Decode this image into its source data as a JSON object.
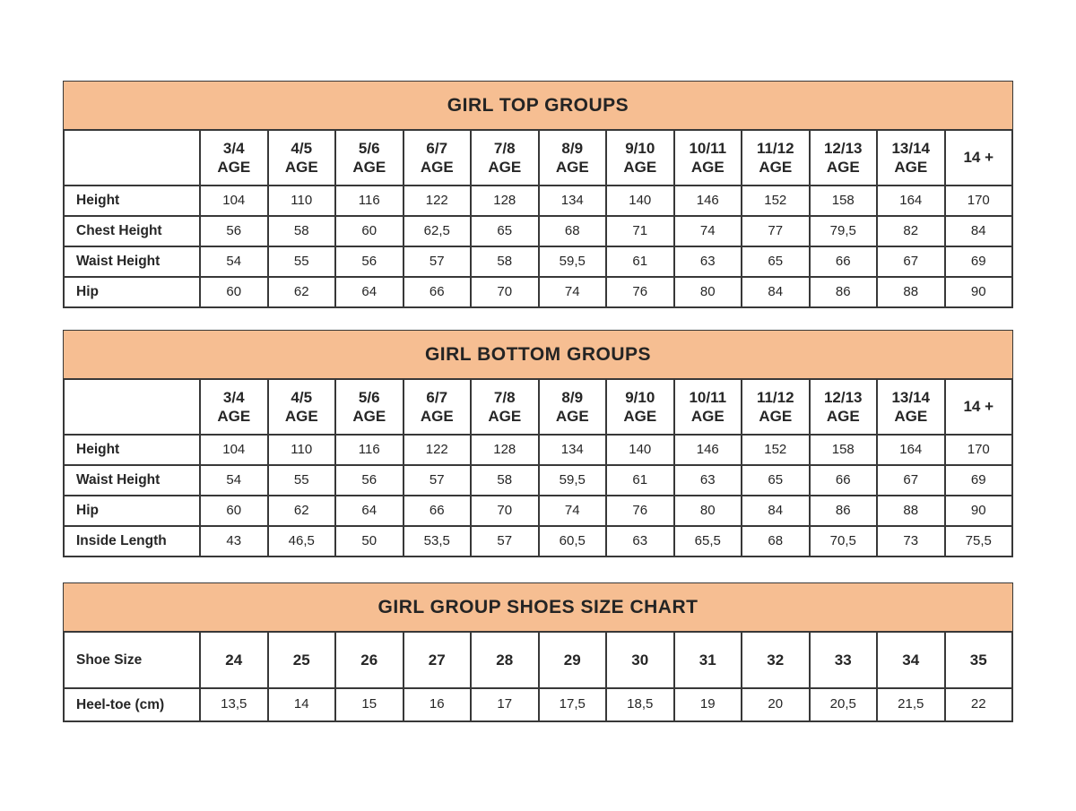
{
  "colors": {
    "band_bg": "#F6BE92",
    "border": "#383838",
    "text": "#262626",
    "page_bg": "#ffffff"
  },
  "tables": [
    {
      "id": "girl-top-groups",
      "title": "GIRL TOP GROUPS",
      "rows": [
        {
          "kind": "header",
          "label": "",
          "values": [
            "3/4\nAGE",
            "4/5\nAGE",
            "5/6\nAGE",
            "6/7\nAGE",
            "7/8\nAGE",
            "8/9\nAGE",
            "9/10\nAGE",
            "10/11\nAGE",
            "11/12\nAGE",
            "12/13\nAGE",
            "13/14\nAGE",
            "14 +"
          ]
        },
        {
          "kind": "data",
          "label": "Height",
          "values": [
            "104",
            "110",
            "116",
            "122",
            "128",
            "134",
            "140",
            "146",
            "152",
            "158",
            "164",
            "170"
          ]
        },
        {
          "kind": "data",
          "label": "Chest Height",
          "values": [
            "56",
            "58",
            "60",
            "62,5",
            "65",
            "68",
            "71",
            "74",
            "77",
            "79,5",
            "82",
            "84"
          ]
        },
        {
          "kind": "data",
          "label": "Waist Height",
          "values": [
            "54",
            "55",
            "56",
            "57",
            "58",
            "59,5",
            "61",
            "63",
            "65",
            "66",
            "67",
            "69"
          ]
        },
        {
          "kind": "data",
          "label": "Hip",
          "values": [
            "60",
            "62",
            "64",
            "66",
            "70",
            "74",
            "76",
            "80",
            "84",
            "86",
            "88",
            "90"
          ]
        }
      ]
    },
    {
      "id": "girl-bottom-groups",
      "title": "GIRL BOTTOM GROUPS",
      "rows": [
        {
          "kind": "header",
          "label": "",
          "values": [
            "3/4\nAGE",
            "4/5\nAGE",
            "5/6\nAGE",
            "6/7\nAGE",
            "7/8\nAGE",
            "8/9\nAGE",
            "9/10\nAGE",
            "10/11\nAGE",
            "11/12\nAGE",
            "12/13\nAGE",
            "13/14\nAGE",
            "14 +"
          ]
        },
        {
          "kind": "data",
          "label": "Height",
          "values": [
            "104",
            "110",
            "116",
            "122",
            "128",
            "134",
            "140",
            "146",
            "152",
            "158",
            "164",
            "170"
          ]
        },
        {
          "kind": "data",
          "label": "Waist Height",
          "values": [
            "54",
            "55",
            "56",
            "57",
            "58",
            "59,5",
            "61",
            "63",
            "65",
            "66",
            "67",
            "69"
          ]
        },
        {
          "kind": "data",
          "label": "Hip",
          "values": [
            "60",
            "62",
            "64",
            "66",
            "70",
            "74",
            "76",
            "80",
            "84",
            "86",
            "88",
            "90"
          ]
        },
        {
          "kind": "data",
          "label": "Inside Length",
          "values": [
            "43",
            "46,5",
            "50",
            "53,5",
            "57",
            "60,5",
            "63",
            "65,5",
            "68",
            "70,5",
            "73",
            "75,5"
          ]
        }
      ]
    },
    {
      "id": "girl-group-shoes-size-chart",
      "title": "GIRL GROUP SHOES SIZE CHART",
      "rows": [
        {
          "kind": "shoe-header",
          "label": "Shoe Size",
          "values": [
            "24",
            "25",
            "26",
            "27",
            "28",
            "29",
            "30",
            "31",
            "32",
            "33",
            "34",
            "35"
          ]
        },
        {
          "kind": "shoe-data",
          "label": "Heel-toe (cm)",
          "values": [
            "13,5",
            "14",
            "15",
            "16",
            "17",
            "17,5",
            "18,5",
            "19",
            "20",
            "20,5",
            "21,5",
            "22"
          ]
        }
      ]
    }
  ]
}
